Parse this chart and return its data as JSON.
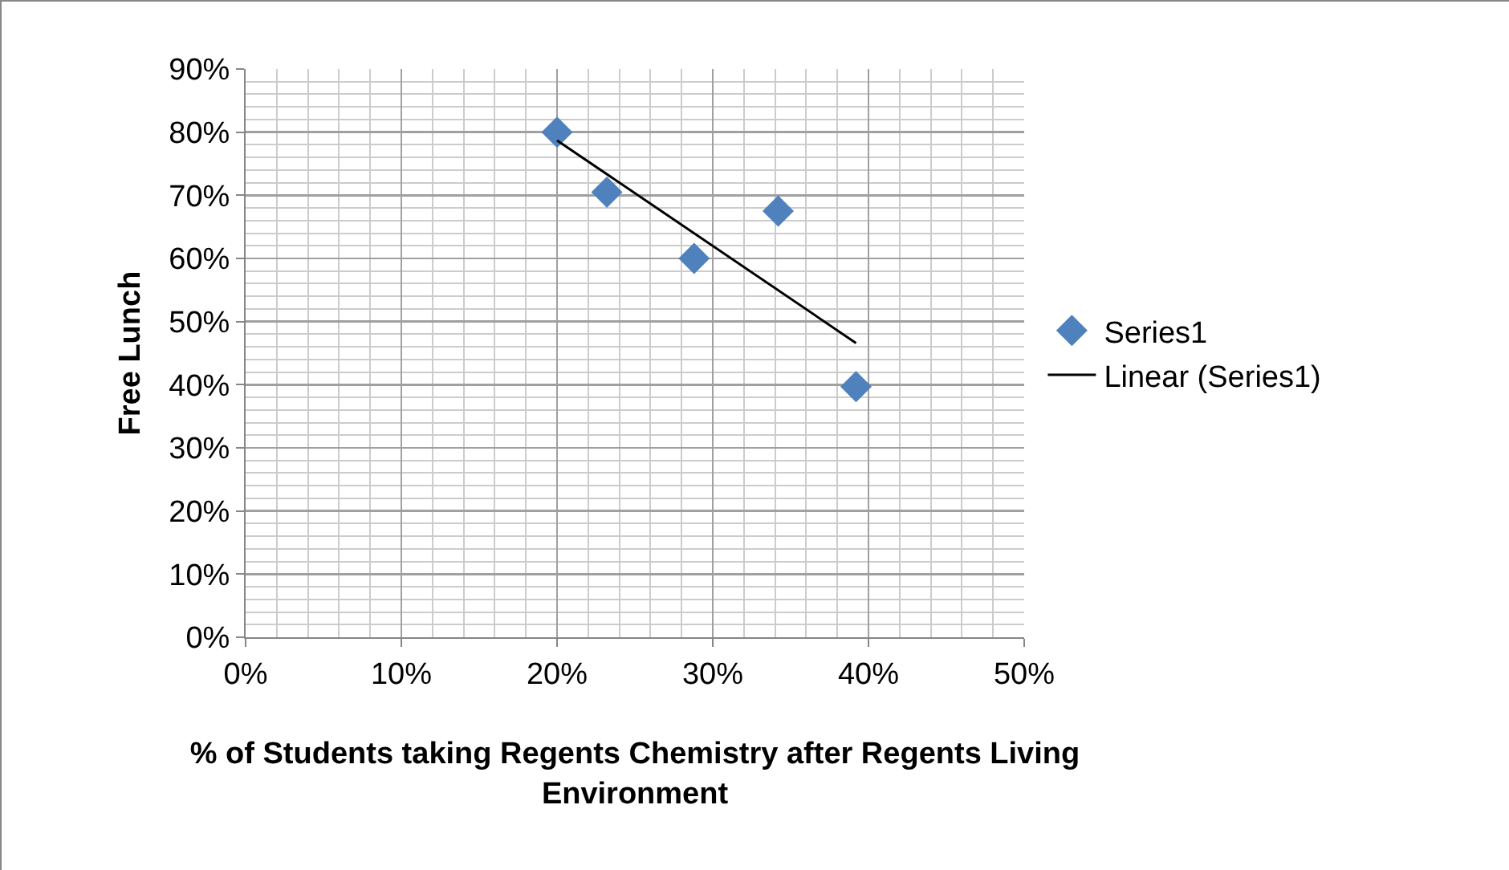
{
  "chart_data": {
    "type": "scatter",
    "xlabel": "% of Students taking Regents Chemistry after Regents Living Environment",
    "ylabel": "Free Lunch",
    "series": [
      {
        "name": "Series1",
        "color": "#4f81bd",
        "marker": "diamond",
        "x": [
          20,
          23.2,
          28.8,
          34.2,
          39.2
        ],
        "values": [
          80,
          70.5,
          60,
          67.5,
          39.7
        ]
      },
      {
        "name": "Linear (Series1)",
        "type": "line",
        "color": "#000000",
        "marker": "none",
        "line_style": "solid",
        "x": [
          20,
          39.2
        ],
        "values": [
          78.7,
          46.6
        ]
      }
    ],
    "xlim": [
      0,
      50
    ],
    "xticks": [
      {
        "value": 0,
        "label": "0%"
      },
      {
        "value": 10,
        "label": "10%"
      },
      {
        "value": 20,
        "label": "20%"
      },
      {
        "value": 30,
        "label": "30%"
      },
      {
        "value": 40,
        "label": "40%"
      },
      {
        "value": 50,
        "label": "50%"
      }
    ],
    "ylim": [
      0,
      90
    ],
    "yticks": [
      {
        "value": 0,
        "label": "0%"
      },
      {
        "value": 10,
        "label": "10%"
      },
      {
        "value": 20,
        "label": "20%"
      },
      {
        "value": 30,
        "label": "30%"
      },
      {
        "value": 40,
        "label": "40%"
      },
      {
        "value": 50,
        "label": "50%"
      },
      {
        "value": 60,
        "label": "60%"
      },
      {
        "value": 70,
        "label": "70%"
      },
      {
        "value": 80,
        "label": "80%"
      },
      {
        "value": 90,
        "label": "90%"
      }
    ],
    "grid": true,
    "legend": "right"
  }
}
